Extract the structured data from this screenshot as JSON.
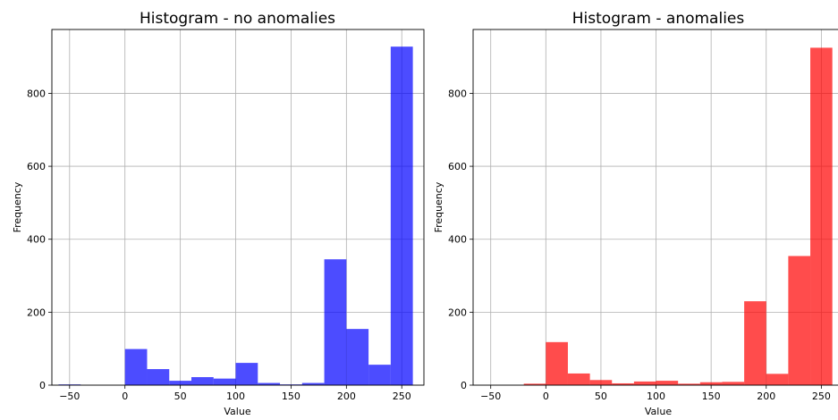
{
  "chart_data": [
    {
      "type": "bar",
      "title": "Histogram - no anomalies",
      "xlabel": "Value",
      "ylabel": "Frequency",
      "color": "#0000ff",
      "alpha": 0.7,
      "grid": true,
      "xlim": [
        -66,
        270
      ],
      "ylim": [
        0,
        975
      ],
      "xticks": [
        -50,
        0,
        50,
        100,
        150,
        200,
        250
      ],
      "xtick_labels": [
        "−50",
        "0",
        "50",
        "100",
        "150",
        "200",
        "250"
      ],
      "yticks": [
        0,
        200,
        400,
        600,
        800
      ],
      "yticks_labels": [
        "0",
        "200",
        "400",
        "600",
        "800"
      ],
      "bin_edges": [
        -60,
        -40,
        -20,
        0,
        20,
        40,
        60,
        80,
        100,
        120,
        140,
        160,
        180,
        200,
        220,
        240,
        260
      ],
      "values": [
        2,
        0,
        0,
        99,
        44,
        12,
        22,
        18,
        61,
        6,
        2,
        6,
        345,
        154,
        56,
        928
      ]
    },
    {
      "type": "bar",
      "title": "Histogram - anomalies",
      "xlabel": "Value",
      "ylabel": "Frequency",
      "color": "#ff0000",
      "alpha": 0.7,
      "grid": true,
      "xlim": [
        -66,
        270
      ],
      "ylim": [
        0,
        975
      ],
      "xticks": [
        -50,
        0,
        50,
        100,
        150,
        200,
        250
      ],
      "xtick_labels": [
        "−50",
        "0",
        "50",
        "100",
        "150",
        "200",
        "250"
      ],
      "yticks": [
        0,
        200,
        400,
        600,
        800
      ],
      "yticks_labels": [
        "0",
        "200",
        "400",
        "600",
        "800"
      ],
      "bin_edges": [
        -20,
        0,
        20,
        40,
        60,
        80,
        100,
        120,
        140,
        160,
        180,
        200,
        220,
        240,
        260
      ],
      "values": [
        4,
        118,
        32,
        14,
        5,
        10,
        12,
        4,
        8,
        9,
        230,
        31,
        354,
        925
      ]
    }
  ]
}
